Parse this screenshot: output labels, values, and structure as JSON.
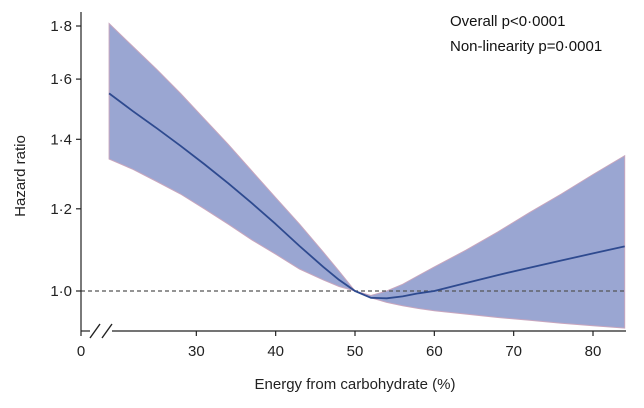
{
  "chart_data": {
    "type": "line",
    "xlabel": "Energy from carbohydrate (%)",
    "ylabel": "Hazard ratio",
    "xlim": [
      0,
      84
    ],
    "ylim": [
      0.91,
      1.82
    ],
    "y_scale": "log",
    "x_axis_break": true,
    "x_ticks": [
      0,
      30,
      40,
      50,
      60,
      70,
      80
    ],
    "x_tick_labels": [
      "0",
      "30",
      "40",
      "50",
      "60",
      "70",
      "80"
    ],
    "y_ticks": [
      1.0,
      1.2,
      1.4,
      1.6,
      1.8
    ],
    "y_tick_labels": [
      "1·0",
      "1·2",
      "1·4",
      "1·6",
      "1·8"
    ],
    "reference_line": {
      "y": 1.0,
      "style": "dashed",
      "color": "#555555"
    },
    "annotations": [
      "Overall p<0·0001",
      "Non-linearity p=0·0001"
    ],
    "grid": false,
    "colors": {
      "line": "#2e4a8f",
      "band": "#9aa6d2",
      "band_edge": "#c8a6be"
    },
    "series": [
      {
        "x": [
          19,
          22,
          25,
          28,
          31,
          34,
          37,
          40,
          43,
          46,
          48,
          50,
          52,
          54,
          56,
          58,
          60,
          64,
          68,
          72,
          76,
          80,
          84
        ],
        "y": [
          1.55,
          1.49,
          1.435,
          1.38,
          1.325,
          1.27,
          1.215,
          1.16,
          1.105,
          1.055,
          1.025,
          1.0,
          0.985,
          0.984,
          0.988,
          0.995,
          1.0,
          1.018,
          1.036,
          1.053,
          1.07,
          1.087,
          1.104
        ],
        "lower": [
          1.34,
          1.31,
          1.275,
          1.24,
          1.2,
          1.16,
          1.12,
          1.085,
          1.05,
          1.025,
          1.01,
          1.0,
          0.985,
          0.975,
          0.968,
          0.962,
          0.957,
          0.95,
          0.943,
          0.937,
          0.931,
          0.926,
          0.921
        ],
        "upper": [
          1.81,
          1.72,
          1.635,
          1.55,
          1.465,
          1.385,
          1.305,
          1.23,
          1.16,
          1.09,
          1.045,
          1.0,
          0.99,
          1.0,
          1.015,
          1.035,
          1.055,
          1.095,
          1.14,
          1.19,
          1.24,
          1.295,
          1.35
        ]
      }
    ]
  }
}
